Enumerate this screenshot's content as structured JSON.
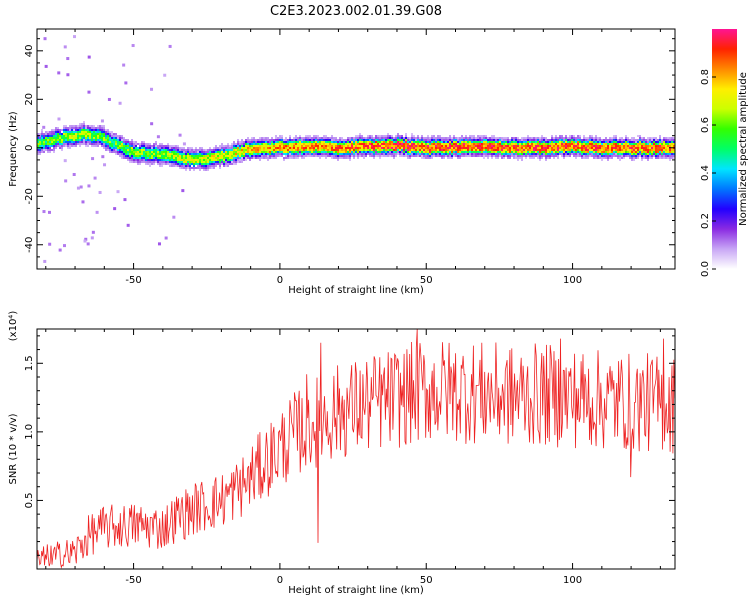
{
  "figure": {
    "title": "C2E3.2023.002.01.39.G08"
  },
  "chart_data": [
    {
      "type": "heatmap",
      "title": "C2E3.2023.002.01.39.G08",
      "xlabel": "Height of straight line (km)",
      "ylabel": "Frequency (Hz)",
      "xlim": [
        -83,
        135
      ],
      "ylim": [
        -50,
        49
      ],
      "xticks": [
        -50,
        0,
        50,
        100
      ],
      "yticks": [
        -40,
        -20,
        0,
        20,
        40
      ],
      "grid": false,
      "colorbar": {
        "label": "Normalized spectral amplitude",
        "range": [
          0,
          1
        ],
        "ticks": [
          "0.0",
          "0.2",
          "0.4",
          "0.6",
          "0.8"
        ],
        "colormap": [
          "#ffffff",
          "#c8a6f5",
          "#8a2be2",
          "#2200ff",
          "#0077ff",
          "#00e5ff",
          "#00ff66",
          "#33ff00",
          "#ccff00",
          "#ffee00",
          "#ff8800",
          "#ff2200",
          "#ff1493"
        ]
      },
      "ridge": [
        {
          "x": -83,
          "y": 1.5,
          "a": 0.55
        },
        {
          "x": -75,
          "y": 4,
          "a": 0.6
        },
        {
          "x": -68,
          "y": 5.5,
          "a": 0.62
        },
        {
          "x": -62,
          "y": 5,
          "a": 0.58
        },
        {
          "x": -57,
          "y": 2,
          "a": 0.55
        },
        {
          "x": -50,
          "y": -2,
          "a": 0.6
        },
        {
          "x": -40,
          "y": -2.5,
          "a": 0.62
        },
        {
          "x": -33,
          "y": -4.5,
          "a": 0.66
        },
        {
          "x": -25,
          "y": -4.5,
          "a": 0.68
        },
        {
          "x": -18,
          "y": -3,
          "a": 0.7
        },
        {
          "x": -10,
          "y": -0.5,
          "a": 0.75
        },
        {
          "x": 0,
          "y": 0,
          "a": 0.8
        },
        {
          "x": 10,
          "y": 0.5,
          "a": 0.82
        },
        {
          "x": 20,
          "y": 0,
          "a": 0.85
        },
        {
          "x": 30,
          "y": 0.5,
          "a": 0.86
        },
        {
          "x": 40,
          "y": 1,
          "a": 0.88
        },
        {
          "x": 50,
          "y": 0,
          "a": 0.88
        },
        {
          "x": 60,
          "y": 0,
          "a": 0.87
        },
        {
          "x": 70,
          "y": 0.5,
          "a": 0.88
        },
        {
          "x": 80,
          "y": 0,
          "a": 0.87
        },
        {
          "x": 90,
          "y": 0,
          "a": 0.88
        },
        {
          "x": 100,
          "y": 0.5,
          "a": 0.86
        },
        {
          "x": 110,
          "y": 0,
          "a": 0.87
        },
        {
          "x": 120,
          "y": 0,
          "a": 0.86
        },
        {
          "x": 135,
          "y": 0,
          "a": 0.85
        }
      ]
    },
    {
      "type": "line",
      "xlabel": "Height of straight line (km)",
      "ylabel": "SNR (10 * v/v)",
      "y_multiplier": "(x10⁴)",
      "xlim": [
        -83,
        135
      ],
      "ylim": [
        0,
        1.75
      ],
      "xticks": [
        -50,
        0,
        50,
        100
      ],
      "yticks": [
        "0.5",
        "1.0",
        "1.5"
      ],
      "grid": false,
      "series": [
        {
          "color": "#ee2222",
          "envelope": [
            {
              "x": -83,
              "y": 0.05
            },
            {
              "x": -70,
              "y": 0.12
            },
            {
              "x": -65,
              "y": 0.25
            },
            {
              "x": -60,
              "y": 0.3
            },
            {
              "x": -50,
              "y": 0.32
            },
            {
              "x": -40,
              "y": 0.3
            },
            {
              "x": -35,
              "y": 0.38
            },
            {
              "x": -28,
              "y": 0.45
            },
            {
              "x": -20,
              "y": 0.5
            },
            {
              "x": -12,
              "y": 0.62
            },
            {
              "x": -5,
              "y": 0.78
            },
            {
              "x": 0,
              "y": 0.88
            },
            {
              "x": 5,
              "y": 0.98
            },
            {
              "x": 10,
              "y": 1.05
            },
            {
              "x": 15,
              "y": 1.1
            },
            {
              "x": 20,
              "y": 1.15
            },
            {
              "x": 30,
              "y": 1.2
            },
            {
              "x": 40,
              "y": 1.25
            },
            {
              "x": 50,
              "y": 1.3
            },
            {
              "x": 60,
              "y": 1.3
            },
            {
              "x": 70,
              "y": 1.28
            },
            {
              "x": 80,
              "y": 1.26
            },
            {
              "x": 90,
              "y": 1.27
            },
            {
              "x": 100,
              "y": 1.25
            },
            {
              "x": 110,
              "y": 1.23
            },
            {
              "x": 120,
              "y": 1.22
            },
            {
              "x": 135,
              "y": 1.2
            }
          ],
          "peaks": [
            {
              "x": 9,
              "y": 1.42
            },
            {
              "x": 14,
              "y": 1.65
            },
            {
              "x": 47,
              "y": 1.75
            },
            {
              "x": 96,
              "y": 1.68
            },
            {
              "x": 131,
              "y": 1.68
            }
          ],
          "troughs": [
            {
              "x": 13,
              "y": 0.19
            },
            {
              "x": 120,
              "y": 0.67
            }
          ]
        }
      ]
    }
  ]
}
